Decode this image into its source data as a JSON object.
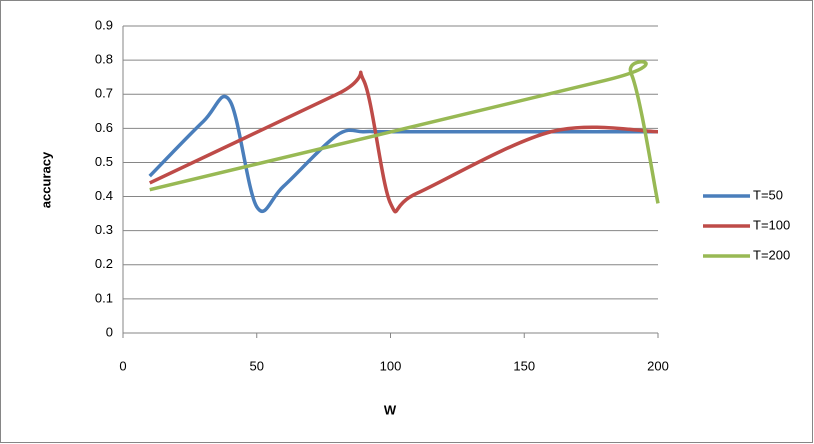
{
  "chart_data": {
    "type": "line",
    "smooth": true,
    "x_label": "W",
    "y_label": "accuracy",
    "xlim": [
      0,
      200
    ],
    "xticks": [
      0,
      50,
      100,
      150,
      200
    ],
    "ylim": [
      0,
      0.9
    ],
    "yticks": [
      0,
      0.1,
      0.2,
      0.3,
      0.4,
      0.5,
      0.6,
      0.7,
      0.8,
      0.9
    ],
    "grid": true,
    "legend": "right",
    "series": [
      {
        "name": "T=50",
        "color": "#4a7ebb",
        "x": [
          10,
          30,
          40,
          50,
          60,
          80,
          90,
          100,
          150,
          200
        ],
        "values": [
          0.46,
          0.62,
          0.68,
          0.37,
          0.43,
          0.58,
          0.59,
          0.59,
          0.59,
          0.59
        ]
      },
      {
        "name": "T=100",
        "color": "#be4b48",
        "x": [
          10,
          80,
          90,
          100,
          110,
          160,
          200
        ],
        "values": [
          0.44,
          0.7,
          0.74,
          0.38,
          0.41,
          0.59,
          0.59
        ]
      },
      {
        "name": "T=200",
        "color": "#98b954",
        "x": [
          10,
          180,
          190,
          200
        ],
        "values": [
          0.42,
          0.74,
          0.76,
          0.38
        ]
      }
    ]
  }
}
